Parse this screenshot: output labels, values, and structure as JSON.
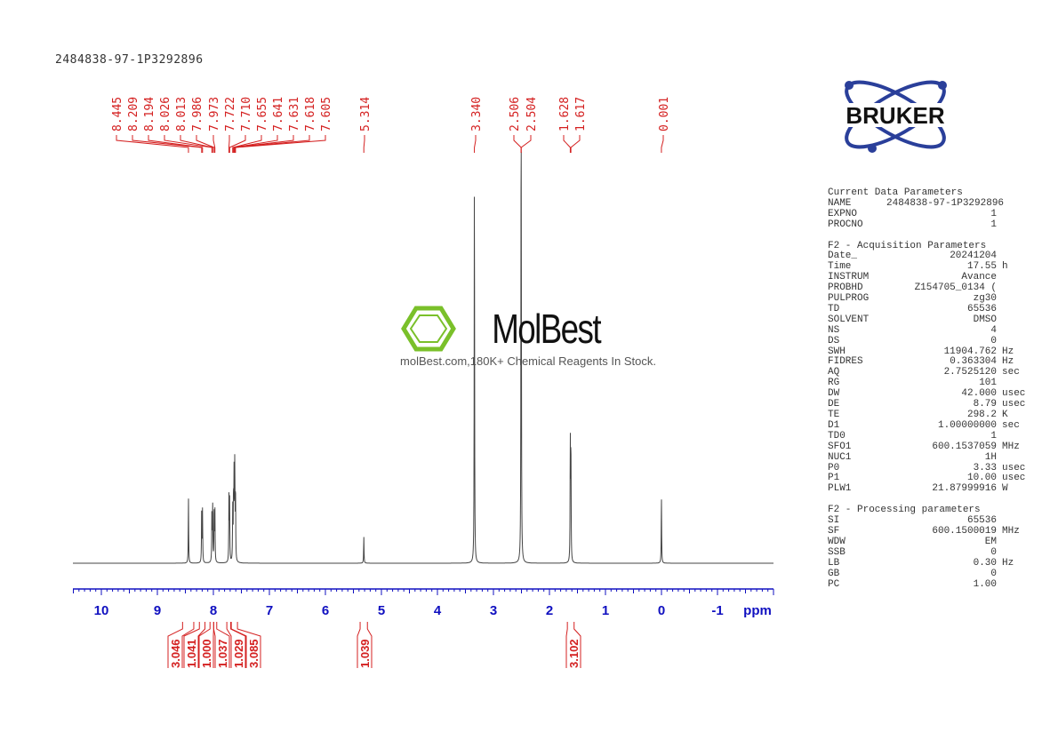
{
  "title": "2484838-97-1P3292896",
  "watermark": {
    "brand": "MolBest",
    "tagline": "molBest.com,180K+ Chemical Reagents In Stock."
  },
  "logo": {
    "text": "BRUKER"
  },
  "colors": {
    "spectrum": "#444444",
    "peak_labels": "#d42020",
    "integrals": "#d42020",
    "axis": "#1010c0"
  },
  "chart_data": {
    "type": "line",
    "xlabel": "ppm",
    "xlim": [
      10.5,
      -2.0
    ],
    "x_ticks": [
      "10",
      "9",
      "8",
      "7",
      "6",
      "5",
      "4",
      "3",
      "2",
      "1",
      "0",
      "-1"
    ],
    "peaks": [
      {
        "ppm": 8.445,
        "intensity": 0.163
      },
      {
        "ppm": 8.209,
        "intensity": 0.136
      },
      {
        "ppm": 8.194,
        "intensity": 0.13
      },
      {
        "ppm": 8.026,
        "intensity": 0.14
      },
      {
        "ppm": 8.013,
        "intensity": 0.145
      },
      {
        "ppm": 7.986,
        "intensity": 0.14
      },
      {
        "ppm": 7.973,
        "intensity": 0.13
      },
      {
        "ppm": 7.722,
        "intensity": 0.16
      },
      {
        "ppm": 7.71,
        "intensity": 0.15
      },
      {
        "ppm": 7.655,
        "intensity": 0.13
      },
      {
        "ppm": 7.641,
        "intensity": 0.16
      },
      {
        "ppm": 7.631,
        "intensity": 0.2
      },
      {
        "ppm": 7.618,
        "intensity": 0.245
      },
      {
        "ppm": 7.605,
        "intensity": 0.18
      },
      {
        "ppm": 5.314,
        "intensity": 0.066
      },
      {
        "ppm": 3.34,
        "intensity": 1.0
      },
      {
        "ppm": 2.506,
        "intensity": 0.7
      },
      {
        "ppm": 2.504,
        "intensity": 0.7
      },
      {
        "ppm": 1.628,
        "intensity": 0.3
      },
      {
        "ppm": 1.617,
        "intensity": 0.3
      },
      {
        "ppm": 0.001,
        "intensity": 0.168
      }
    ],
    "peak_labels": [
      "8.445",
      "8.209",
      "8.194",
      "8.026",
      "8.013",
      "7.986",
      "7.973",
      "7.722",
      "7.710",
      "7.655",
      "7.641",
      "7.631",
      "7.618",
      "7.605",
      "5.314",
      "3.340",
      "2.506",
      "2.504",
      "1.628",
      "1.617",
      "0.001"
    ],
    "integrals": [
      {
        "label": "3.046",
        "from": 8.55,
        "to": 8.35
      },
      {
        "label": "1.041",
        "from": 8.25,
        "to": 8.15
      },
      {
        "label": "1.000",
        "from": 8.06,
        "to": 7.995
      },
      {
        "label": "1.037",
        "from": 7.995,
        "to": 7.94
      },
      {
        "label": "1.029",
        "from": 7.76,
        "to": 7.69
      },
      {
        "label": "3.085",
        "from": 7.68,
        "to": 7.57
      },
      {
        "label": "1.039",
        "from": 5.38,
        "to": 5.25
      },
      {
        "label": "3.102",
        "from": 1.68,
        "to": 1.56
      }
    ]
  },
  "parameters": {
    "current": {
      "heading": "Current Data Parameters",
      "rows": [
        [
          "NAME",
          "2484838-97-1P3292896",
          ""
        ],
        [
          "EXPNO",
          "1",
          ""
        ],
        [
          "PROCNO",
          "1",
          ""
        ]
      ]
    },
    "acquisition": {
      "heading": "F2 - Acquisition Parameters",
      "rows": [
        [
          "Date_",
          "20241204",
          ""
        ],
        [
          "Time",
          "17.55",
          "h"
        ],
        [
          "INSTRUM",
          "Avance",
          ""
        ],
        [
          "PROBHD",
          "Z154705_0134 (",
          ""
        ],
        [
          "PULPROG",
          "zg30",
          ""
        ],
        [
          "TD",
          "65536",
          ""
        ],
        [
          "SOLVENT",
          "DMSO",
          ""
        ],
        [
          "NS",
          "4",
          ""
        ],
        [
          "DS",
          "0",
          ""
        ],
        [
          "SWH",
          "11904.762",
          "Hz"
        ],
        [
          "FIDRES",
          "0.363304",
          "Hz"
        ],
        [
          "AQ",
          "2.7525120",
          "sec"
        ],
        [
          "RG",
          "101",
          ""
        ],
        [
          "DW",
          "42.000",
          "usec"
        ],
        [
          "DE",
          "8.79",
          "usec"
        ],
        [
          "TE",
          "298.2",
          "K"
        ],
        [
          "D1",
          "1.00000000",
          "sec"
        ],
        [
          "TD0",
          "1",
          ""
        ],
        [
          "SFO1",
          "600.1537059",
          "MHz"
        ],
        [
          "NUC1",
          "1H",
          ""
        ],
        [
          "P0",
          "3.33",
          "usec"
        ],
        [
          "P1",
          "10.00",
          "usec"
        ],
        [
          "PLW1",
          "21.87999916",
          "W"
        ]
      ]
    },
    "processing": {
      "heading": "F2 - Processing parameters",
      "rows": [
        [
          "SI",
          "65536",
          ""
        ],
        [
          "SF",
          "600.1500019",
          "MHz"
        ],
        [
          "WDW",
          "EM",
          ""
        ],
        [
          "SSB",
          "0",
          ""
        ],
        [
          "LB",
          "0.30",
          "Hz"
        ],
        [
          "GB",
          "0",
          ""
        ],
        [
          "PC",
          "1.00",
          ""
        ]
      ]
    }
  }
}
